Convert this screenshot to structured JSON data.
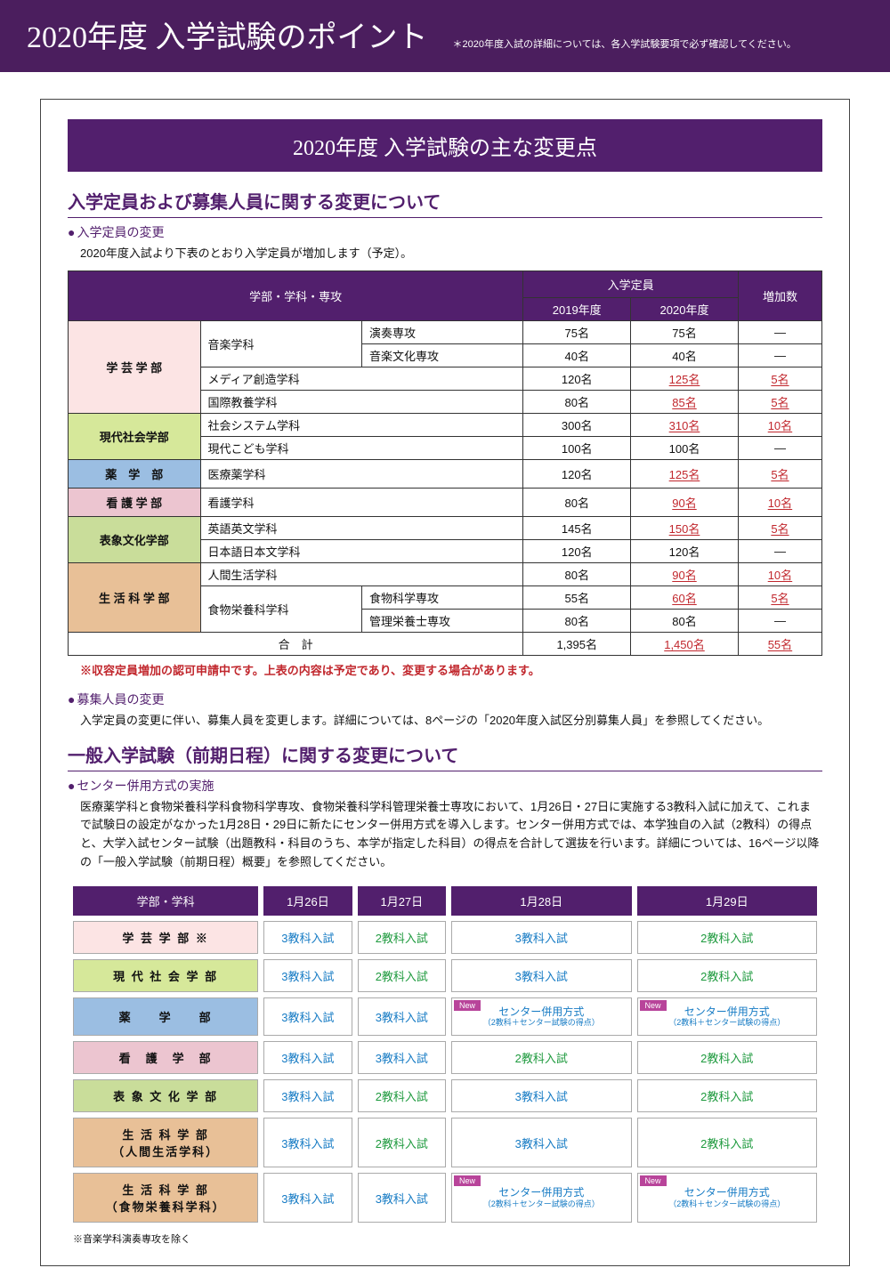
{
  "header": {
    "title": "2020年度 入学試験のポイント",
    "note": "＊2020年度入試の詳細については、各入学試験要項で必ず確認してください。"
  },
  "banner": "2020年度 入学試験の主な変更点",
  "sec1": {
    "title": "入学定員および募集人員に関する変更について",
    "sub1": "入学定員の変更",
    "intro": "2020年度入試より下表のとおり入学定員が増加します（予定）。",
    "warn": "※収容定員増加の認可申請中です。上表の内容は予定であり、変更する場合があります。",
    "sub2": "募集人員の変更",
    "sub2text": "入学定員の変更に伴い、募集人員を変更します。詳細については、8ページの「2020年度入試区分別募集人員」を参照してください。"
  },
  "t1": {
    "h_fac": "学部・学科・専攻",
    "h_cap": "入学定員",
    "h_y19": "2019年度",
    "h_y20": "2020年度",
    "h_inc": "増加数",
    "colors": {
      "gakugei": "#fce4e4",
      "gendai": "#d6e89a",
      "yaku": "#9bbee2",
      "kango": "#ecc5d0",
      "hyosho": "#c9dd9a",
      "seikatsu": "#e8c097"
    },
    "rows": [
      {
        "fac": "学 芸 学 部",
        "facColor": "gakugei",
        "dept": "音楽学科",
        "sub": "演奏専攻",
        "y19": "75名",
        "y20": "75名",
        "inc": "—",
        "hl": false,
        "span": 4
      },
      {
        "dept": "",
        "sub": "音楽文化専攻",
        "y19": "40名",
        "y20": "40名",
        "inc": "—",
        "hl": false
      },
      {
        "dept": "メディア創造学科",
        "sub": "",
        "y19": "120名",
        "y20": "125名",
        "inc": "5名",
        "hl": true
      },
      {
        "dept": "国際教養学科",
        "sub": "",
        "y19": "80名",
        "y20": "85名",
        "inc": "5名",
        "hl": true
      },
      {
        "fac": "現代社会学部",
        "facColor": "gendai",
        "dept": "社会システム学科",
        "sub": "",
        "y19": "300名",
        "y20": "310名",
        "inc": "10名",
        "hl": true,
        "span": 2
      },
      {
        "dept": "現代こども学科",
        "sub": "",
        "y19": "100名",
        "y20": "100名",
        "inc": "—",
        "hl": false
      },
      {
        "fac": "薬　学　部",
        "facColor": "yaku",
        "dept": "医療薬学科",
        "sub": "",
        "y19": "120名",
        "y20": "125名",
        "inc": "5名",
        "hl": true,
        "span": 1
      },
      {
        "fac": "看 護 学 部",
        "facColor": "kango",
        "dept": "看護学科",
        "sub": "",
        "y19": "80名",
        "y20": "90名",
        "inc": "10名",
        "hl": true,
        "span": 1
      },
      {
        "fac": "表象文化学部",
        "facColor": "hyosho",
        "dept": "英語英文学科",
        "sub": "",
        "y19": "145名",
        "y20": "150名",
        "inc": "5名",
        "hl": true,
        "span": 2
      },
      {
        "dept": "日本語日本文学科",
        "sub": "",
        "y19": "120名",
        "y20": "120名",
        "inc": "—",
        "hl": false
      },
      {
        "fac": "生 活 科 学 部",
        "facColor": "seikatsu",
        "dept": "人間生活学科",
        "sub": "",
        "y19": "80名",
        "y20": "90名",
        "inc": "10名",
        "hl": true,
        "span": 3
      },
      {
        "dept": "食物栄養科学科",
        "sub": "食物科学専攻",
        "y19": "55名",
        "y20": "60名",
        "inc": "5名",
        "hl": true
      },
      {
        "dept": "",
        "sub": "管理栄養士専攻",
        "y19": "80名",
        "y20": "80名",
        "inc": "—",
        "hl": false
      }
    ],
    "total": {
      "label": "合　計",
      "y19": "1,395名",
      "y20": "1,450名",
      "inc": "55名"
    }
  },
  "sec2": {
    "title": "一般入学試験（前期日程）に関する変更について",
    "sub1": "センター併用方式の実施",
    "text": "医療薬学科と食物栄養科学科食物科学専攻、食物栄養科学科管理栄養士専攻において、1月26日・27日に実施する3教科入試に加えて、これまで試験日の設定がなかった1月28日・29日に新たにセンター併用方式を導入します。センター併用方式では、本学独自の入試（2教科）の得点と、大学入試センター試験（出題教科・科目のうち、本学が指定した科目）の得点を合計して選抜を行います。詳細については、16ページ以降の「一般入学試験（前期日程）概要」を参照してください。"
  },
  "t2": {
    "headers": [
      "学部・学科",
      "1月26日",
      "1月27日",
      "1月28日",
      "1月29日"
    ],
    "rows": [
      {
        "fac": "学 芸 学 部 ※",
        "color": "#fce4e4",
        "cells": [
          "3教科入試|blue",
          "2教科入試|green",
          "3教科入試|blue",
          "2教科入試|green"
        ]
      },
      {
        "fac": "現 代 社 会 学 部",
        "color": "#d6e89a",
        "cells": [
          "3教科入試|blue",
          "2教科入試|green",
          "3教科入試|blue",
          "2教科入試|green"
        ]
      },
      {
        "fac": "薬　　学　　部",
        "color": "#9bbee2",
        "cells": [
          "3教科入試|blue",
          "3教科入試|blue",
          "CENTER",
          "CENTER"
        ]
      },
      {
        "fac": "看　護　学　部",
        "color": "#ecc5d0",
        "cells": [
          "3教科入試|blue",
          "3教科入試|blue",
          "2教科入試|green",
          "2教科入試|green"
        ]
      },
      {
        "fac": "表 象 文 化 学 部",
        "color": "#c9dd9a",
        "cells": [
          "3教科入試|blue",
          "2教科入試|green",
          "3教科入試|blue",
          "2教科入試|green"
        ]
      },
      {
        "fac": "生 活 科 学 部\n（人間生活学科）",
        "color": "#e8c097",
        "cells": [
          "3教科入試|blue",
          "2教科入試|green",
          "3教科入試|blue",
          "2教科入試|green"
        ]
      },
      {
        "fac": "生 活 科 学 部\n（食物栄養科学科）",
        "color": "#e8c097",
        "cells": [
          "3教科入試|blue",
          "3教科入試|blue",
          "CENTER",
          "CENTER"
        ]
      }
    ],
    "center_label": "センター併用方式",
    "center_sub": "（2教科＋センター試験の得点）",
    "new_label": "New",
    "footnote": "※音楽学科演奏専攻を除く"
  }
}
